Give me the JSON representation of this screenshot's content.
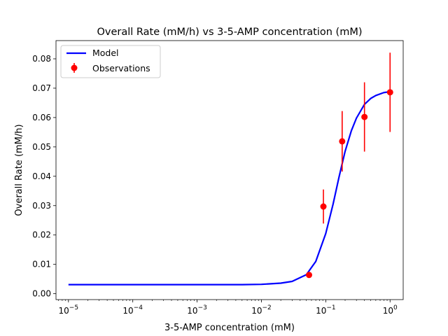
{
  "chart_data": {
    "type": "scatter",
    "title": "Overall Rate (mM/h) vs 3-5-AMP concentration (mM)",
    "xlabel": "3-5-AMP concentration (mM)",
    "ylabel": "Overall Rate (mM/h)",
    "x_scale": "log",
    "xlim": [
      6.4e-06,
      1.6
    ],
    "ylim": [
      -0.002,
      0.0862
    ],
    "x_ticks": [
      {
        "value": 1e-05,
        "base": "10",
        "exp": "−5"
      },
      {
        "value": 0.0001,
        "base": "10",
        "exp": "−4"
      },
      {
        "value": 0.001,
        "base": "10",
        "exp": "−3"
      },
      {
        "value": 0.01,
        "base": "10",
        "exp": "−2"
      },
      {
        "value": 0.1,
        "base": "10",
        "exp": "−1"
      },
      {
        "value": 1,
        "base": "10",
        "exp": "0"
      }
    ],
    "y_ticks": [
      {
        "value": 0.0,
        "label": "0.00"
      },
      {
        "value": 0.01,
        "label": "0.01"
      },
      {
        "value": 0.02,
        "label": "0.02"
      },
      {
        "value": 0.03,
        "label": "0.03"
      },
      {
        "value": 0.04,
        "label": "0.04"
      },
      {
        "value": 0.05,
        "label": "0.05"
      },
      {
        "value": 0.06,
        "label": "0.06"
      },
      {
        "value": 0.07,
        "label": "0.07"
      },
      {
        "value": 0.08,
        "label": "0.08"
      }
    ],
    "grid": false,
    "legend_position": "top-left",
    "series": [
      {
        "name": "Model",
        "type": "line",
        "color": "#0000ff",
        "x": [
          1e-05,
          0.0001,
          0.001,
          0.005,
          0.01,
          0.02,
          0.03,
          0.05,
          0.07,
          0.1,
          0.13,
          0.16,
          0.2,
          0.25,
          0.3,
          0.4,
          0.5,
          0.6,
          0.8,
          1.0
        ],
        "y": [
          0.0031,
          0.0031,
          0.0031,
          0.0031,
          0.0032,
          0.0036,
          0.0042,
          0.0065,
          0.011,
          0.0205,
          0.0305,
          0.0395,
          0.0485,
          0.0555,
          0.0598,
          0.0645,
          0.0665,
          0.0675,
          0.0685,
          0.0688
        ]
      },
      {
        "name": "Observations",
        "type": "errorbar",
        "color": "#ff0000",
        "x": [
          0.055,
          0.092,
          0.18,
          0.4,
          1.0
        ],
        "y": [
          0.0064,
          0.0297,
          0.0519,
          0.0602,
          0.0686
        ],
        "yerr": [
          0.0,
          0.0058,
          0.0103,
          0.0118,
          0.0135
        ]
      }
    ]
  }
}
